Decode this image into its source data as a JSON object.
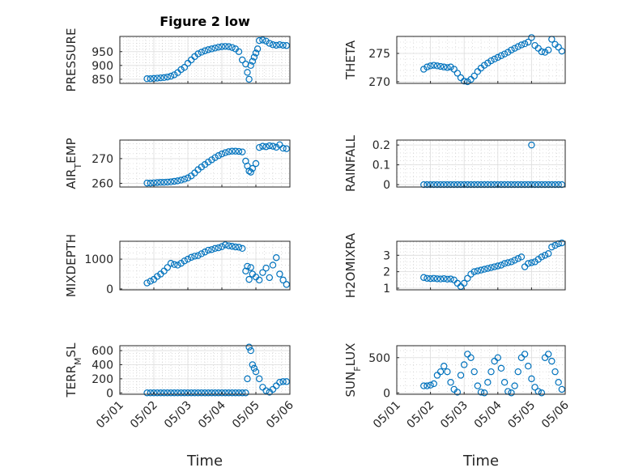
{
  "chart_data": [
    {
      "type": "scatter",
      "title": "Figure 2 low",
      "ylabel": "PRESSURE",
      "ylim": [
        835,
        1005
      ],
      "yticks": [
        850,
        900,
        950
      ],
      "x": [
        1.8,
        1.9,
        2.0,
        2.1,
        2.2,
        2.3,
        2.4,
        2.5,
        2.6,
        2.7,
        2.8,
        2.9,
        3.0,
        3.1,
        3.2,
        3.3,
        3.4,
        3.5,
        3.6,
        3.7,
        3.8,
        3.9,
        4.0,
        4.1,
        4.2,
        4.3,
        4.4,
        4.5,
        4.6,
        4.7,
        4.75,
        4.8,
        4.85,
        4.9,
        4.95,
        5.0,
        5.05,
        5.1,
        5.2,
        5.3,
        5.4,
        5.5,
        5.6,
        5.7,
        5.8,
        5.9
      ],
      "y": [
        852,
        852,
        853,
        854,
        855,
        856,
        858,
        861,
        866,
        874,
        885,
        893,
        908,
        920,
        932,
        942,
        948,
        953,
        957,
        960,
        963,
        966,
        968,
        969,
        968,
        965,
        960,
        950,
        920,
        905,
        875,
        850,
        900,
        915,
        930,
        945,
        960,
        990,
        992,
        988,
        980,
        975,
        973,
        975,
        973,
        972
      ]
    },
    {
      "type": "scatter",
      "ylabel": "THETA",
      "ylim": [
        269.7,
        278
      ],
      "yticks": [
        270,
        275
      ],
      "x": [
        1.8,
        1.9,
        2.0,
        2.1,
        2.2,
        2.3,
        2.4,
        2.5,
        2.6,
        2.7,
        2.8,
        2.9,
        3.0,
        3.1,
        3.2,
        3.3,
        3.4,
        3.5,
        3.6,
        3.7,
        3.8,
        3.9,
        4.0,
        4.1,
        4.2,
        4.3,
        4.4,
        4.5,
        4.6,
        4.7,
        4.8,
        4.9,
        5.0,
        5.1,
        5.2,
        5.3,
        5.4,
        5.5,
        5.6,
        5.7,
        5.8,
        5.9
      ],
      "y": [
        272.2,
        272.6,
        272.8,
        272.9,
        272.8,
        272.7,
        272.6,
        272.5,
        272.6,
        272.2,
        271.5,
        270.7,
        270.1,
        270.0,
        270.4,
        271.0,
        271.8,
        272.4,
        272.9,
        273.3,
        273.7,
        274.0,
        274.3,
        274.6,
        274.9,
        275.2,
        275.6,
        275.9,
        276.2,
        276.5,
        276.7,
        277.0,
        277.8,
        276.4,
        275.9,
        275.3,
        275.2,
        275.6,
        277.5,
        276.6,
        276.1,
        275.4
      ]
    },
    {
      "type": "scatter",
      "ylabel": "AIR_TEMP",
      "ylim": [
        258.5,
        277.5
      ],
      "yticks": [
        260,
        270
      ],
      "x": [
        1.8,
        1.9,
        2.0,
        2.1,
        2.2,
        2.3,
        2.4,
        2.5,
        2.6,
        2.7,
        2.8,
        2.9,
        3.0,
        3.1,
        3.2,
        3.3,
        3.4,
        3.5,
        3.6,
        3.7,
        3.8,
        3.9,
        4.0,
        4.1,
        4.2,
        4.3,
        4.4,
        4.5,
        4.6,
        4.7,
        4.75,
        4.8,
        4.85,
        4.9,
        5.0,
        5.1,
        5.2,
        5.3,
        5.4,
        5.5,
        5.6,
        5.7,
        5.8,
        5.9
      ],
      "y": [
        260.1,
        260.1,
        260.2,
        260.3,
        260.4,
        260.4,
        260.5,
        260.6,
        260.8,
        261.0,
        261.3,
        261.7,
        262.2,
        263.0,
        264.2,
        265.5,
        266.6,
        267.6,
        268.6,
        269.5,
        270.4,
        271.2,
        271.9,
        272.4,
        272.8,
        273.0,
        273.0,
        272.9,
        272.7,
        269.0,
        267.0,
        265.0,
        264.5,
        266.0,
        268.0,
        274.5,
        275.0,
        274.8,
        275.2,
        275.0,
        274.6,
        275.6,
        274.2,
        274.0
      ]
    },
    {
      "type": "scatter",
      "ylabel": "RAINFALL",
      "ylim": [
        -0.012,
        0.225
      ],
      "yticks": [
        0,
        0.1,
        0.2
      ],
      "yticklabels": [
        "0",
        "0.1",
        "0.2"
      ],
      "x": [
        1.8,
        1.9,
        2.0,
        2.1,
        2.2,
        2.3,
        2.4,
        2.5,
        2.6,
        2.7,
        2.8,
        2.9,
        3.0,
        3.1,
        3.2,
        3.3,
        3.4,
        3.5,
        3.6,
        3.7,
        3.8,
        3.9,
        4.0,
        4.1,
        4.2,
        4.3,
        4.4,
        4.5,
        4.6,
        4.7,
        4.8,
        4.9,
        5.0,
        5.1,
        5.2,
        5.3,
        5.4,
        5.5,
        5.6,
        5.7,
        5.8,
        5.9
      ],
      "y": [
        0,
        0,
        0,
        0,
        0,
        0,
        0,
        0,
        0,
        0,
        0,
        0,
        0,
        0,
        0,
        0,
        0,
        0,
        0,
        0,
        0,
        0,
        0,
        0,
        0,
        0,
        0,
        0,
        0,
        0,
        0,
        0,
        0,
        0,
        0,
        0,
        0,
        0,
        0,
        0,
        0,
        0
      ],
      "extra_points": [
        [
          5.0,
          0.2
        ]
      ]
    },
    {
      "type": "scatter",
      "ylabel": "MIXDEPTH",
      "ylim": [
        -30,
        1600
      ],
      "yticks": [
        0,
        1000
      ],
      "x": [
        1.8,
        1.9,
        2.0,
        2.1,
        2.2,
        2.3,
        2.4,
        2.5,
        2.6,
        2.7,
        2.8,
        2.9,
        3.0,
        3.1,
        3.2,
        3.3,
        3.4,
        3.5,
        3.6,
        3.7,
        3.8,
        3.9,
        4.0,
        4.1,
        4.2,
        4.3,
        4.4,
        4.5,
        4.6,
        4.7,
        4.75,
        4.8,
        4.85,
        4.9,
        5.0,
        5.1,
        5.2,
        5.3,
        5.4,
        5.5,
        5.6,
        5.7,
        5.8,
        5.9
      ],
      "y": [
        200,
        260,
        320,
        420,
        500,
        600,
        720,
        860,
        820,
        800,
        860,
        940,
        1000,
        1060,
        1100,
        1120,
        1180,
        1240,
        1300,
        1320,
        1360,
        1380,
        1420,
        1480,
        1450,
        1430,
        1410,
        1400,
        1360,
        600,
        760,
        320,
        720,
        500,
        400,
        300,
        550,
        700,
        380,
        800,
        1050,
        500,
        300,
        150
      ]
    },
    {
      "type": "scatter",
      "ylabel": "H2OMIXRA",
      "ylim": [
        0.9,
        3.85
      ],
      "yticks": [
        1,
        2,
        3
      ],
      "x": [
        1.8,
        1.9,
        2.0,
        2.1,
        2.2,
        2.3,
        2.4,
        2.5,
        2.6,
        2.7,
        2.8,
        2.9,
        3.0,
        3.1,
        3.2,
        3.3,
        3.4,
        3.5,
        3.6,
        3.7,
        3.8,
        3.9,
        4.0,
        4.1,
        4.2,
        4.3,
        4.4,
        4.5,
        4.6,
        4.7,
        4.8,
        4.9,
        5.0,
        5.1,
        5.2,
        5.3,
        5.4,
        5.5,
        5.6,
        5.7,
        5.8,
        5.9
      ],
      "y": [
        1.65,
        1.6,
        1.58,
        1.6,
        1.57,
        1.56,
        1.58,
        1.55,
        1.56,
        1.5,
        1.3,
        1.1,
        1.3,
        1.6,
        1.85,
        2.0,
        2.05,
        2.1,
        2.15,
        2.2,
        2.25,
        2.3,
        2.35,
        2.4,
        2.5,
        2.55,
        2.6,
        2.7,
        2.8,
        2.9,
        2.3,
        2.5,
        2.55,
        2.6,
        2.75,
        2.9,
        3.0,
        3.1,
        3.5,
        3.6,
        3.7,
        3.75
      ]
    },
    {
      "type": "scatter",
      "ylabel": "TERR_MSL",
      "ylim": [
        -20,
        670
      ],
      "yticks": [
        0,
        200,
        400,
        600
      ],
      "x": [
        1.8,
        1.9,
        2.0,
        2.1,
        2.2,
        2.3,
        2.4,
        2.5,
        2.6,
        2.7,
        2.8,
        2.9,
        3.0,
        3.1,
        3.2,
        3.3,
        3.4,
        3.5,
        3.6,
        3.7,
        3.8,
        3.9,
        4.0,
        4.1,
        4.2,
        4.3,
        4.4,
        4.5,
        4.6,
        4.7,
        4.75,
        4.8,
        4.85,
        4.9,
        4.95,
        5.0,
        5.1,
        5.2,
        5.3,
        5.4,
        5.5,
        5.6,
        5.7,
        5.8,
        5.9
      ],
      "y": [
        0,
        0,
        0,
        0,
        0,
        0,
        0,
        0,
        0,
        0,
        0,
        0,
        0,
        0,
        0,
        0,
        0,
        0,
        0,
        0,
        0,
        0,
        0,
        0,
        0,
        0,
        0,
        0,
        0,
        0,
        200,
        650,
        600,
        400,
        350,
        300,
        200,
        80,
        30,
        10,
        50,
        100,
        150,
        160,
        160
      ]
    },
    {
      "type": "scatter",
      "ylabel": "SUN_FLUX",
      "ylim": [
        -20,
        670
      ],
      "yticks": [
        0,
        500
      ],
      "x": [
        1.8,
        1.9,
        2.0,
        2.1,
        2.2,
        2.3,
        2.4,
        2.5,
        2.6,
        2.7,
        2.8,
        2.9,
        3.0,
        3.1,
        3.2,
        3.3,
        3.4,
        3.5,
        3.6,
        3.7,
        3.8,
        3.9,
        4.0,
        4.1,
        4.2,
        4.3,
        4.4,
        4.5,
        4.6,
        4.7,
        4.8,
        4.9,
        5.0,
        5.1,
        5.2,
        5.3,
        5.4,
        5.5,
        5.6,
        5.7,
        5.8,
        5.9
      ],
      "y": [
        100,
        100,
        110,
        130,
        250,
        300,
        380,
        300,
        150,
        50,
        10,
        250,
        400,
        550,
        500,
        300,
        100,
        10,
        0,
        150,
        300,
        450,
        500,
        350,
        150,
        20,
        0,
        100,
        300,
        500,
        550,
        380,
        200,
        80,
        20,
        0,
        500,
        550,
        450,
        300,
        150,
        50
      ]
    }
  ],
  "xaxis": {
    "range": [
      "05/01",
      "05/06"
    ],
    "ticks": [
      "05/01",
      "05/02",
      "05/03",
      "05/04",
      "05/05",
      "05/06"
    ],
    "label": "Time"
  },
  "colors": {
    "marker": "#0072bd",
    "axis": "#262626"
  }
}
